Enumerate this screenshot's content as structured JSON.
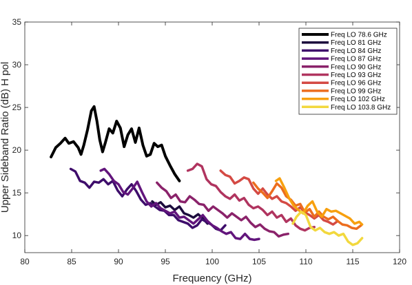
{
  "chart_data": {
    "type": "line",
    "title": "",
    "xlabel": "Frequency (GHz)",
    "ylabel": "Upper Sideband Ratio (dB) H pol",
    "xlim": [
      80,
      120
    ],
    "ylim": [
      8,
      35
    ],
    "xticks": [
      80,
      85,
      90,
      95,
      100,
      105,
      110,
      115,
      120
    ],
    "yticks": [
      10,
      15,
      20,
      25,
      30,
      35
    ],
    "xtick_labels": [
      "80",
      "85",
      "90",
      "95",
      "100",
      "105",
      "110",
      "115",
      "120"
    ],
    "ytick_labels": [
      "10",
      "15",
      "20",
      "25",
      "30",
      "35"
    ],
    "grid": false,
    "legend_position": "top-right",
    "series": [
      {
        "name": "Freq LO 78.6 GHz",
        "color": "#000000",
        "x": [
          82.8,
          83.3,
          83.8,
          84.3,
          84.7,
          85.2,
          85.7,
          86.0,
          86.3,
          86.7,
          87.1,
          87.4,
          87.7,
          88.0,
          88.3,
          88.6,
          89.0,
          89.4,
          89.8,
          90.2,
          90.6,
          91.0,
          91.4,
          91.8,
          92.2,
          92.6,
          93.0,
          93.4,
          93.8,
          94.2,
          94.6,
          95.0,
          95.5,
          96.0,
          96.5
        ],
        "y": [
          19.2,
          20.3,
          20.8,
          21.4,
          20.8,
          21.0,
          20.3,
          19.5,
          20.6,
          22.4,
          24.6,
          25.1,
          23.4,
          21.2,
          19.8,
          20.9,
          22.5,
          22.0,
          23.4,
          22.6,
          20.4,
          21.8,
          22.5,
          20.9,
          22.6,
          20.6,
          19.3,
          19.5,
          20.8,
          20.4,
          20.6,
          19.3,
          18.2,
          17.2,
          16.4
        ]
      },
      {
        "name": "Freq LO 81 GHz",
        "color": "#1c0c3d",
        "x": [
          93.6,
          94.0,
          94.5,
          95.0,
          95.5,
          96.0,
          96.5,
          97.0,
          97.5,
          98.0,
          98.5,
          99.0,
          99.5
        ],
        "y": [
          14.0,
          13.6,
          13.9,
          13.3,
          13.5,
          13.0,
          13.4,
          12.6,
          12.4,
          12.1,
          12.5,
          12.0,
          11.4
        ]
      },
      {
        "name": "Freq LO 84 GHz",
        "color": "#3e0d6b",
        "x": [
          84.9,
          85.4,
          85.9,
          86.4,
          86.9,
          87.4,
          87.9,
          88.4,
          88.9,
          89.4,
          89.9,
          90.4,
          90.9,
          91.4,
          91.9,
          92.4,
          92.9,
          93.4,
          93.9,
          94.4,
          94.9,
          95.4,
          95.9,
          96.4,
          96.9,
          97.4,
          97.9,
          98.4,
          98.9,
          99.4,
          99.9,
          100.4,
          100.9,
          101.4
        ],
        "y": [
          17.8,
          17.5,
          16.4,
          16.2,
          15.6,
          16.3,
          16.2,
          16.6,
          16.0,
          16.4,
          15.3,
          14.6,
          15.4,
          16.0,
          15.2,
          14.2,
          13.6,
          13.8,
          13.4,
          13.0,
          12.9,
          12.4,
          12.4,
          11.8,
          11.6,
          11.4,
          10.9,
          11.2,
          11.9,
          11.6,
          11.3,
          10.8,
          10.6,
          11.2
        ]
      },
      {
        "name": "Freq LO 87 GHz",
        "color": "#62157c",
        "x": [
          88.1,
          88.5,
          89.0,
          89.5,
          90.0,
          90.5,
          91.0,
          91.5,
          92.0,
          92.5,
          93.0,
          93.5,
          94.0,
          94.5,
          95.0,
          95.5,
          96.0,
          96.5,
          97.0,
          97.5,
          98.0,
          98.5,
          99.0,
          99.5,
          100.0,
          100.5,
          101.0,
          101.5,
          102.0,
          102.5,
          103.0,
          103.5,
          104.0,
          104.5,
          105.0
        ],
        "y": [
          17.6,
          17.8,
          17.2,
          16.4,
          16.0,
          15.1,
          14.8,
          15.5,
          16.3,
          15.1,
          14.0,
          13.4,
          13.8,
          13.2,
          12.9,
          12.6,
          12.8,
          12.1,
          12.2,
          11.8,
          11.4,
          11.9,
          12.4,
          11.7,
          11.2,
          10.9,
          10.5,
          10.2,
          10.4,
          9.7,
          9.6,
          10.2,
          9.6,
          9.5,
          9.6
        ]
      },
      {
        "name": "Freq LO 90 GHz",
        "color": "#8a226a",
        "x": [
          94.1,
          94.6,
          95.1,
          95.6,
          96.1,
          96.6,
          97.1,
          97.6,
          98.1,
          98.6,
          99.1,
          99.6,
          100.1,
          100.6,
          101.1,
          101.6,
          102.1,
          102.6,
          103.1,
          103.6,
          104.1,
          104.6,
          105.1,
          105.6,
          106.1,
          106.6,
          107.1,
          107.6,
          108.1
        ],
        "y": [
          16.2,
          15.6,
          15.2,
          14.4,
          14.8,
          14.0,
          13.9,
          14.6,
          14.2,
          13.7,
          13.6,
          12.9,
          13.4,
          13.0,
          12.6,
          12.1,
          12.6,
          12.2,
          11.8,
          12.2,
          11.5,
          11.0,
          11.3,
          10.8,
          10.5,
          10.4,
          9.9,
          10.1,
          10.2
        ]
      },
      {
        "name": "Freq LO 93 GHz",
        "color": "#b0345f",
        "x": [
          97.4,
          97.9,
          98.4,
          98.9,
          99.4,
          99.9,
          100.4,
          100.9,
          101.4,
          101.9,
          102.4,
          102.9,
          103.4,
          103.9,
          104.4,
          104.9,
          105.4,
          105.9,
          106.4,
          106.9,
          107.4,
          107.9,
          108.4,
          108.9,
          109.4,
          109.9,
          110.4,
          110.9
        ],
        "y": [
          17.6,
          17.8,
          18.4,
          18.1,
          16.6,
          16.0,
          15.8,
          15.1,
          14.6,
          14.3,
          14.8,
          14.1,
          14.4,
          13.6,
          13.2,
          13.4,
          13.0,
          12.4,
          12.8,
          12.1,
          12.4,
          11.6,
          12.0,
          11.2,
          10.8,
          10.6,
          10.9,
          11.0
        ]
      },
      {
        "name": "Freq LO 96 GHz",
        "color": "#d44a44",
        "x": [
          100.9,
          101.4,
          101.9,
          102.4,
          102.9,
          103.4,
          103.9,
          104.4,
          104.9,
          105.4,
          105.9,
          106.4,
          106.9,
          107.4,
          107.9,
          108.4,
          108.9,
          109.4,
          109.9,
          110.4,
          110.9,
          111.4,
          111.9,
          112.4,
          112.9,
          113.4
        ],
        "y": [
          17.6,
          17.1,
          16.9,
          16.1,
          16.4,
          16.8,
          16.6,
          15.5,
          14.9,
          15.5,
          14.8,
          14.3,
          14.6,
          14.0,
          13.8,
          13.4,
          12.9,
          13.3,
          12.7,
          12.4,
          12.0,
          12.4,
          11.8,
          11.6,
          11.3,
          11.7
        ]
      },
      {
        "name": "Freq LO 99 GHz",
        "color": "#ec6d1e",
        "x": [
          104.4,
          104.9,
          105.4,
          105.9,
          106.4,
          106.9,
          107.4,
          107.9,
          108.4,
          108.9,
          109.4,
          109.9,
          110.4,
          110.9,
          111.4,
          111.9,
          112.4,
          112.9,
          113.4,
          113.9,
          114.4,
          114.9,
          115.4,
          115.9
        ],
        "y": [
          16.2,
          15.5,
          15.0,
          14.4,
          15.2,
          16.1,
          15.6,
          14.6,
          14.2,
          13.5,
          13.7,
          12.7,
          13.1,
          12.2,
          12.8,
          12.2,
          11.9,
          12.2,
          11.7,
          11.3,
          11.2,
          10.9,
          10.8,
          11.2
        ]
      },
      {
        "name": "Freq LO 102 GHz",
        "color": "#f7a00f",
        "x": [
          106.8,
          107.2,
          107.7,
          108.2,
          108.7,
          109.2,
          109.7,
          110.2,
          110.7,
          111.2,
          111.7,
          112.2,
          112.7,
          113.2,
          113.7,
          114.2,
          114.7,
          115.2,
          115.7,
          116.0
        ],
        "y": [
          16.4,
          16.7,
          15.6,
          14.4,
          13.5,
          13.0,
          12.6,
          13.5,
          14.0,
          12.8,
          12.2,
          13.1,
          12.8,
          12.9,
          12.6,
          12.3,
          12.0,
          11.4,
          11.6,
          11.3
        ]
      },
      {
        "name": "Freq LO 103.8 GHz",
        "color": "#f2d83e",
        "x": [
          108.6,
          109.0,
          109.5,
          110.0,
          110.5,
          111.0,
          111.5,
          112.0,
          112.5,
          113.0,
          113.5,
          114.0,
          114.5,
          115.0,
          115.5,
          116.0
        ],
        "y": [
          11.4,
          12.2,
          12.8,
          12.4,
          11.0,
          10.6,
          10.9,
          10.4,
          10.2,
          10.4,
          10.0,
          10.2,
          9.3,
          8.9,
          9.1,
          9.7
        ]
      }
    ]
  }
}
